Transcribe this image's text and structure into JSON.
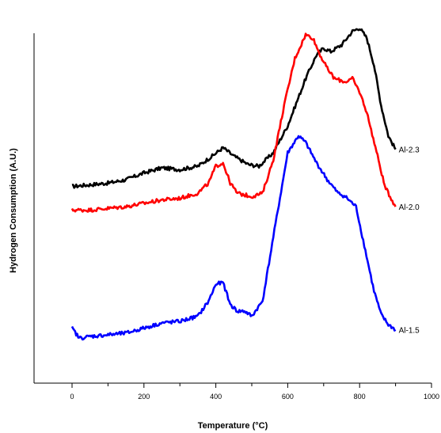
{
  "chart_data": {
    "type": "line",
    "xlabel": "Temperature (°C)",
    "ylabel": "Hydrogen Consumption (A.U.)",
    "xlim": [
      0,
      1000
    ],
    "ylim": [
      0,
      100
    ],
    "x_ticks": [
      "0",
      "200",
      "400",
      "600",
      "800",
      "1000"
    ],
    "grid": false,
    "legend": "none",
    "series": [
      {
        "name": "Al-2.3",
        "color": "#000000",
        "points": [
          [
            0,
            48
          ],
          [
            50,
            48.5
          ],
          [
            100,
            49
          ],
          [
            150,
            50
          ],
          [
            200,
            52
          ],
          [
            250,
            53.5
          ],
          [
            300,
            53
          ],
          [
            350,
            54
          ],
          [
            390,
            57
          ],
          [
            420,
            59.5
          ],
          [
            450,
            57
          ],
          [
            490,
            54.5
          ],
          [
            520,
            54
          ],
          [
            560,
            58
          ],
          [
            600,
            66
          ],
          [
            650,
            80
          ],
          [
            680,
            87
          ],
          [
            700,
            89
          ],
          [
            720,
            88
          ],
          [
            750,
            90
          ],
          [
            780,
            94
          ],
          [
            800,
            95
          ],
          [
            820,
            92
          ],
          [
            840,
            84
          ],
          [
            860,
            72
          ],
          [
            880,
            63
          ],
          [
            900,
            59
          ]
        ]
      },
      {
        "name": "Al-2.0",
        "color": "#ff0000",
        "points": [
          [
            0,
            41
          ],
          [
            50,
            41
          ],
          [
            100,
            41.5
          ],
          [
            150,
            42
          ],
          [
            200,
            43
          ],
          [
            250,
            44
          ],
          [
            300,
            44.5
          ],
          [
            350,
            46
          ],
          [
            380,
            49
          ],
          [
            400,
            54
          ],
          [
            420,
            55
          ],
          [
            440,
            49
          ],
          [
            460,
            46
          ],
          [
            500,
            45
          ],
          [
            530,
            46
          ],
          [
            560,
            56
          ],
          [
            590,
            72
          ],
          [
            620,
            86
          ],
          [
            650,
            93
          ],
          [
            670,
            92
          ],
          [
            690,
            87
          ],
          [
            710,
            83
          ],
          [
            730,
            80
          ],
          [
            760,
            79
          ],
          [
            780,
            80
          ],
          [
            800,
            76
          ],
          [
            820,
            70
          ],
          [
            850,
            57
          ],
          [
            870,
            48
          ],
          [
            900,
            42
          ]
        ]
      },
      {
        "name": "Al-1.5",
        "color": "#0000ff",
        "points": [
          [
            0,
            6
          ],
          [
            20,
            3
          ],
          [
            50,
            3.5
          ],
          [
            100,
            4
          ],
          [
            150,
            4.5
          ],
          [
            200,
            6
          ],
          [
            250,
            7.5
          ],
          [
            300,
            8
          ],
          [
            350,
            9.5
          ],
          [
            380,
            14
          ],
          [
            400,
            19
          ],
          [
            420,
            19.5
          ],
          [
            440,
            13
          ],
          [
            460,
            11
          ],
          [
            480,
            11
          ],
          [
            500,
            9.5
          ],
          [
            530,
            14
          ],
          [
            560,
            33
          ],
          [
            600,
            58
          ],
          [
            630,
            63
          ],
          [
            650,
            61
          ],
          [
            680,
            55
          ],
          [
            710,
            50
          ],
          [
            740,
            46
          ],
          [
            760,
            45
          ],
          [
            790,
            42
          ],
          [
            810,
            32
          ],
          [
            840,
            17
          ],
          [
            860,
            10
          ],
          [
            880,
            7
          ],
          [
            900,
            5.5
          ]
        ]
      }
    ]
  }
}
